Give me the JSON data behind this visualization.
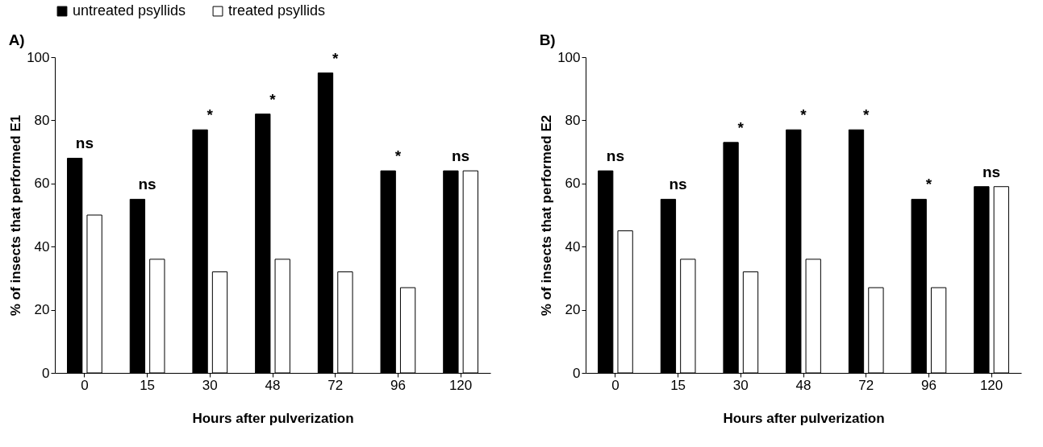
{
  "chart_data": [
    {
      "type": "bar",
      "title": "A)",
      "xlabel": "Hours after pulverization",
      "ylabel": "% of insects that performed E1",
      "categories": [
        "0",
        "15",
        "30",
        "48",
        "72",
        "96",
        "120"
      ],
      "series": [
        {
          "name": "untreated psyllids",
          "color": "#000000",
          "values": [
            68,
            55,
            77,
            82,
            95,
            64,
            64
          ]
        },
        {
          "name": "treated psyllids",
          "color": "#ffffff",
          "values": [
            50,
            36,
            32,
            36,
            32,
            27,
            64
          ]
        }
      ],
      "annotations": [
        {
          "text": "ns",
          "x": "0",
          "y": 68
        },
        {
          "text": "ns",
          "x": "15",
          "y": 55
        },
        {
          "text": "*",
          "x": "30",
          "y": 77
        },
        {
          "text": "*",
          "x": "48",
          "y": 82
        },
        {
          "text": "*",
          "x": "72",
          "y": 95
        },
        {
          "text": "*",
          "x": "96",
          "y": 64
        },
        {
          "text": "ns",
          "x": "120",
          "y": 64
        }
      ],
      "ylim": [
        0,
        100
      ],
      "yticks": [
        0,
        20,
        40,
        60,
        80,
        100
      ],
      "legend": "top"
    },
    {
      "type": "bar",
      "title": "B)",
      "xlabel": "Hours after pulverization",
      "ylabel": "% of insects that performed E2",
      "categories": [
        "0",
        "15",
        "30",
        "48",
        "72",
        "96",
        "120"
      ],
      "series": [
        {
          "name": "untreated psyllids",
          "color": "#000000",
          "values": [
            64,
            55,
            73,
            77,
            77,
            55,
            59
          ]
        },
        {
          "name": "treated psyllids",
          "color": "#ffffff",
          "values": [
            45,
            36,
            32,
            36,
            27,
            27,
            59
          ]
        }
      ],
      "annotations": [
        {
          "text": "ns",
          "x": "0",
          "y": 64
        },
        {
          "text": "ns",
          "x": "15",
          "y": 55
        },
        {
          "text": "*",
          "x": "30",
          "y": 73
        },
        {
          "text": "*",
          "x": "48",
          "y": 77
        },
        {
          "text": "*",
          "x": "72",
          "y": 77
        },
        {
          "text": "*",
          "x": "96",
          "y": 55
        },
        {
          "text": "ns",
          "x": "120",
          "y": 59
        }
      ],
      "ylim": [
        0,
        100
      ],
      "yticks": [
        0,
        20,
        40,
        60,
        80,
        100
      ],
      "legend": "top"
    }
  ]
}
